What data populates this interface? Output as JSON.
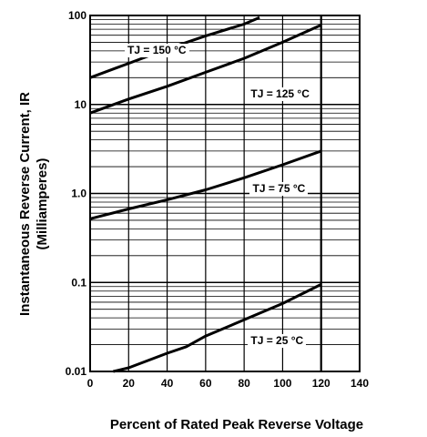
{
  "chart_data": {
    "type": "line",
    "title": "",
    "xlabel": "Percent of Rated Peak Reverse Voltage",
    "ylabel": [
      "Instantaneous Reverse Current, IR",
      "(Milliamperes)"
    ],
    "xlim": [
      0,
      140
    ],
    "ylim": [
      0.01,
      100
    ],
    "yscale": "log",
    "grid": true,
    "x_ticks": [
      "0",
      "20",
      "40",
      "60",
      "80",
      "100",
      "120",
      "140"
    ],
    "y_ticks": [
      "0.01",
      "0.1",
      "1.0",
      "10",
      "100"
    ],
    "series": [
      {
        "name": "TJ = 150 °C",
        "x": [
          0,
          20,
          40,
          60,
          80,
          88
        ],
        "y": [
          20,
          29,
          42,
          59,
          80,
          95
        ]
      },
      {
        "name": "TJ = 125 °C",
        "x": [
          0,
          20,
          40,
          60,
          80,
          100,
          120
        ],
        "y": [
          8,
          11.5,
          16,
          23,
          33,
          50,
          78
        ]
      },
      {
        "name": "TJ = 75 °C",
        "x": [
          0,
          20,
          40,
          60,
          80,
          100,
          120
        ],
        "y": [
          0.52,
          0.67,
          0.85,
          1.1,
          1.5,
          2.1,
          3.0
        ]
      },
      {
        "name": "TJ = 25 °C",
        "x": [
          12,
          20,
          40,
          50,
          60,
          80,
          100,
          120
        ],
        "y": [
          0.01,
          0.011,
          0.016,
          0.019,
          0.025,
          0.038,
          0.058,
          0.095
        ]
      }
    ],
    "annotations": [
      "TJ = 150 °C",
      "TJ = 125 °C",
      "TJ = 75 °C",
      "TJ = 25 °C"
    ]
  }
}
